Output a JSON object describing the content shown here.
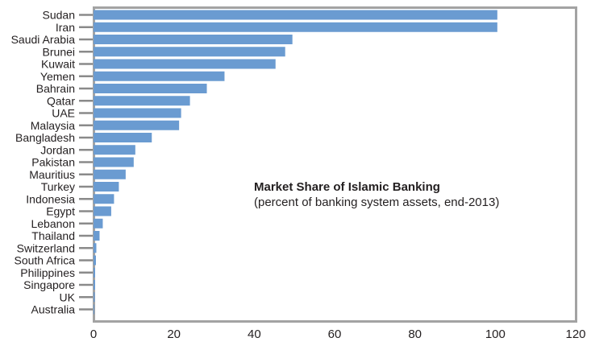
{
  "chart_data": {
    "type": "bar",
    "orientation": "horizontal",
    "annotation": {
      "title": "Market Share of Islamic Banking",
      "subtitle": "(percent of banking system assets, end-2013)"
    },
    "xlim": [
      0,
      120
    ],
    "xticks": [
      0,
      20,
      40,
      60,
      80,
      100,
      120
    ],
    "grid": false,
    "bar_color": "#6a9bd1",
    "frame_color": "#a3a3a3",
    "categories": [
      "Sudan",
      "Iran",
      "Saudi Arabia",
      "Brunei",
      "Kuwait",
      "Yemen",
      "Bahrain",
      "Qatar",
      "UAE",
      "Malaysia",
      "Bangladesh",
      "Jordan",
      "Pakistan",
      "Mauritius",
      "Turkey",
      "Indonesia",
      "Egypt",
      "Lebanon",
      "Thailand",
      "Switzerland",
      "South Africa",
      "Philippines",
      "Singapore",
      "UK",
      "Australia"
    ],
    "values": [
      100.5,
      100.5,
      49.5,
      47.7,
      45.3,
      32.6,
      28.2,
      24.0,
      21.8,
      21.3,
      14.5,
      10.4,
      10.0,
      8.0,
      6.3,
      5.1,
      4.4,
      2.3,
      1.5,
      0.7,
      0.6,
      0.4,
      0.4,
      0.3,
      0.2
    ]
  }
}
